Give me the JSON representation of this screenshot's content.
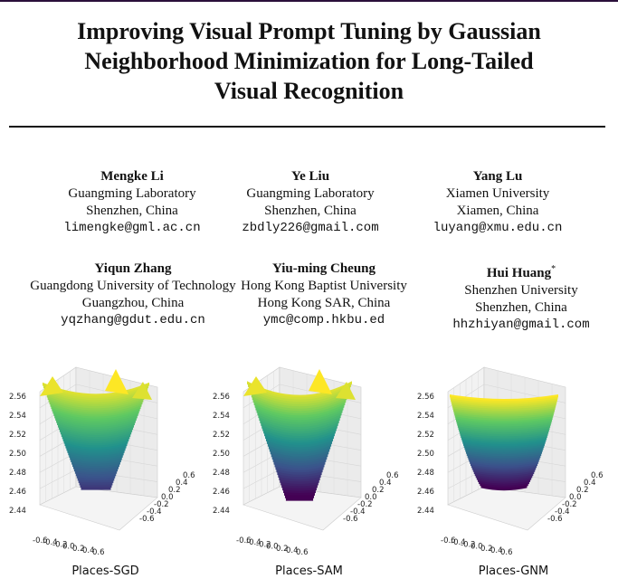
{
  "title_lines": [
    "Improving Visual Prompt Tuning by Gaussian",
    "Neighborhood Minimization for Long-Tailed",
    "Visual Recognition"
  ],
  "authors": [
    {
      "name": "Mengke Li",
      "affiliation": "Guangming Laboratory",
      "location": "Shenzhen, China",
      "email": "limengke@gml.ac.cn"
    },
    {
      "name": "Ye Liu",
      "affiliation": "Guangming Laboratory",
      "location": "Shenzhen, China",
      "email": "zbdly226@gmail.com"
    },
    {
      "name": "Yang Lu",
      "affiliation": "Xiamen University",
      "location": "Xiamen, China",
      "email": "luyang@xmu.edu.cn"
    },
    {
      "name": "Yiqun Zhang",
      "affiliation": "Guangdong University of Technology",
      "location": "Guangzhou, China",
      "email": "yqzhang@gdut.edu.cn"
    },
    {
      "name": "Yiu-ming Cheung",
      "affiliation": "Hong Kong Baptist University",
      "location": "Hong Kong SAR, China",
      "email": "ymc@comp.hkbu.ed"
    },
    {
      "name": "Hui Huang",
      "affiliation": "Shenzhen University",
      "location": "Shenzhen, China",
      "email": "hhzhiyan@gmail.com",
      "marker": "*"
    }
  ],
  "figures": [
    {
      "caption": "Places-SGD",
      "z_ticks": [
        "2.56",
        "2.54",
        "2.52",
        "2.50",
        "2.48",
        "2.46",
        "2.44"
      ],
      "x_ticks": [
        "-0.6",
        "-0.4",
        "-0.2",
        "0.0",
        "0.2",
        "0.4",
        "0.6"
      ],
      "y_ticks": [
        "-0.6",
        "-0.4",
        "-0.2",
        "0.0",
        "0.2",
        "0.4",
        "0.6"
      ]
    },
    {
      "caption": "Places-SAM",
      "z_ticks": [
        "2.56",
        "2.54",
        "2.52",
        "2.50",
        "2.48",
        "2.46",
        "2.44"
      ],
      "x_ticks": [
        "-0.6",
        "-0.4",
        "-0.2",
        "0.0",
        "0.2",
        "0.4",
        "0.6"
      ],
      "y_ticks": [
        "-0.6",
        "-0.4",
        "-0.2",
        "0.0",
        "0.2",
        "0.4",
        "0.6"
      ]
    },
    {
      "caption": "Places-GNM",
      "z_ticks": [
        "2.56",
        "2.54",
        "2.52",
        "2.50",
        "2.48",
        "2.46",
        "2.44"
      ],
      "x_ticks": [
        "-0.6",
        "-0.4",
        "-0.2",
        "0.0",
        "0.2",
        "0.4",
        "0.6"
      ],
      "y_ticks": [
        "-0.6",
        "-0.4",
        "-0.2",
        "0.0",
        "0.2",
        "0.4",
        "0.6"
      ]
    }
  ],
  "colormap": [
    "#440154",
    "#3b528b",
    "#21918c",
    "#5ec962",
    "#fde725"
  ]
}
